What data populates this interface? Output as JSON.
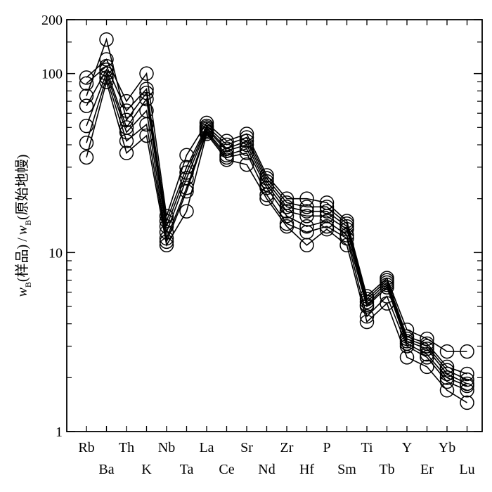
{
  "chart_data": {
    "type": "line",
    "title": "",
    "xlabel": "",
    "ylabel": {
      "num_var": "w",
      "num_sub": "B",
      "num_text": "(样品)",
      "sep": "/",
      "den_var": "w",
      "den_sub": "B",
      "den_text": "(原始地幔)"
    },
    "yscale": "log",
    "ylim": [
      1,
      200
    ],
    "yticks": [
      1,
      10,
      100,
      200
    ],
    "ytick_labels": [
      "1",
      "10",
      "100",
      "200"
    ],
    "grid": false,
    "categories": [
      "Rb",
      "Ba",
      "Th",
      "K",
      "Nb",
      "Ta",
      "La",
      "Ce",
      "Sr",
      "Nd",
      "Zr",
      "Hf",
      "P",
      "Sm",
      "Ti",
      "Tb",
      "Y",
      "Er",
      "Yb",
      "Lu"
    ],
    "marker": "open-circle",
    "series": [
      {
        "values": [
          95,
          120,
          70,
          100,
          16,
          35,
          53,
          42,
          46,
          27,
          20,
          20,
          19,
          15,
          5.7,
          7.2,
          3.7,
          3.3,
          2.8,
          2.8
        ]
      },
      {
        "values": [
          88,
          110,
          62,
          82,
          15,
          30,
          51,
          40,
          44,
          26,
          19,
          18,
          18,
          14.5,
          5.5,
          7.0,
          3.4,
          3.1,
          2.3,
          2.1
        ]
      },
      {
        "values": [
          75,
          155,
          55,
          78,
          14,
          28,
          50,
          38,
          42,
          25,
          18,
          17,
          17,
          14,
          5.3,
          6.8,
          3.3,
          3.0,
          2.2,
          1.95
        ]
      },
      {
        "values": [
          66,
          105,
          50,
          72,
          13,
          26,
          49,
          37,
          40,
          24,
          17,
          16,
          16,
          13.5,
          5.1,
          6.6,
          3.2,
          2.9,
          2.1,
          1.85
        ]
      },
      {
        "values": [
          51,
          100,
          47,
          62,
          12,
          23,
          48,
          35,
          38,
          23,
          16,
          14,
          15,
          12.5,
          5.0,
          6.4,
          3.1,
          2.7,
          2.0,
          1.8
        ]
      },
      {
        "values": [
          41,
          95,
          42,
          52,
          11.5,
          22,
          47,
          34,
          36,
          21,
          14.5,
          13,
          14,
          12,
          4.4,
          5.7,
          3.0,
          2.6,
          1.9,
          1.7
        ]
      },
      {
        "values": [
          34,
          90,
          36,
          45,
          11,
          17,
          46,
          33,
          31,
          20,
          14,
          11,
          13.5,
          11,
          4.1,
          5.2,
          2.6,
          2.3,
          1.7,
          1.45
        ]
      }
    ]
  }
}
